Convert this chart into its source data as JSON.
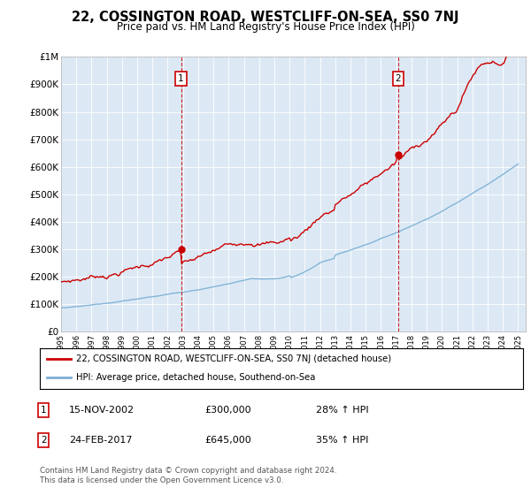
{
  "title": "22, COSSINGTON ROAD, WESTCLIFF-ON-SEA, SS0 7NJ",
  "subtitle": "Price paid vs. HM Land Registry's House Price Index (HPI)",
  "plot_bg_color": "#dce9f5",
  "ylim": [
    0,
    1000000
  ],
  "yticks": [
    0,
    100000,
    200000,
    300000,
    400000,
    500000,
    600000,
    700000,
    800000,
    900000,
    1000000
  ],
  "ytick_labels": [
    "£0",
    "£100K",
    "£200K",
    "£300K",
    "£400K",
    "£500K",
    "£600K",
    "£700K",
    "£800K",
    "£900K",
    "£1M"
  ],
  "sale1_year": 2002.875,
  "sale1_price": 300000,
  "sale2_year": 2017.125,
  "sale2_price": 645000,
  "legend_line1": "22, COSSINGTON ROAD, WESTCLIFF-ON-SEA, SS0 7NJ (detached house)",
  "legend_line2": "HPI: Average price, detached house, Southend-on-Sea",
  "footer": "Contains HM Land Registry data © Crown copyright and database right 2024.\nThis data is licensed under the Open Government Licence v3.0.",
  "table_rows": [
    {
      "num": "1",
      "date": "15-NOV-2002",
      "price": "£300,000",
      "hpi": "28% ↑ HPI"
    },
    {
      "num": "2",
      "date": "24-FEB-2017",
      "price": "£645,000",
      "hpi": "35% ↑ HPI"
    }
  ],
  "red_color": "#cc0000",
  "blue_color": "#7aafd4",
  "xmin": 1995,
  "xmax": 2025.5
}
